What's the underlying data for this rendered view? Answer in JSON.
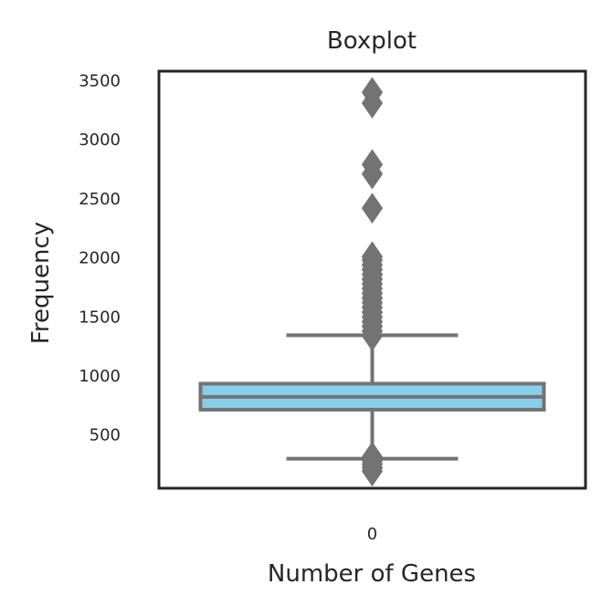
{
  "chart_data": {
    "type": "box",
    "title": "Boxplot",
    "xlabel": "Number of Genes",
    "ylabel": "Frequency",
    "categories": [
      "0"
    ],
    "yticks": [
      500,
      1000,
      1500,
      2000,
      2500,
      3000,
      3500
    ],
    "ylim": [
      50,
      3580
    ],
    "grid": false,
    "box": {
      "whisker_low": 300,
      "q1": 715,
      "median": 823,
      "q3": 935,
      "whisker_high": 1345
    },
    "outliers": [
      195,
      225,
      255,
      285,
      315,
      1340,
      1380,
      1420,
      1460,
      1500,
      1540,
      1580,
      1620,
      1660,
      1700,
      1740,
      1780,
      1820,
      1860,
      1900,
      1940,
      1980,
      2010,
      2420,
      2710,
      2790,
      3310,
      3400
    ],
    "colors": {
      "box_fill": "#87ceeb",
      "line": "#737373",
      "axes": "#262626"
    }
  }
}
